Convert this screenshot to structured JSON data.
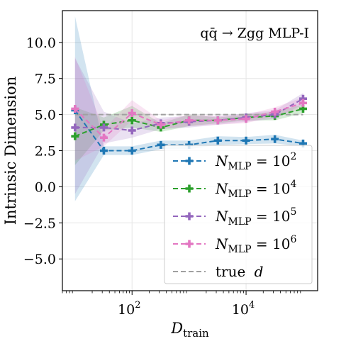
{
  "chart_data": {
    "type": "line",
    "annotation": "qq̄ → Zgg MLP-I",
    "xlabel": "D",
    "xlabel_sub": "train",
    "ylabel": "Intrinsic Dimension",
    "x_scale": "log",
    "xlim": [
      6,
      180000
    ],
    "ylim": [
      -7.2,
      12.2
    ],
    "xticks": [
      {
        "value": 100,
        "base": "10",
        "exp": "2"
      },
      {
        "value": 10000,
        "base": "10",
        "exp": "4"
      }
    ],
    "yticks": [
      {
        "value": 10,
        "label": "10.0"
      },
      {
        "value": 7.5,
        "label": "7.5"
      },
      {
        "value": 5,
        "label": "5.0"
      },
      {
        "value": 2.5,
        "label": "2.5"
      },
      {
        "value": 0,
        "label": "0.0"
      },
      {
        "value": -2.5,
        "label": "−2.5"
      },
      {
        "value": -5,
        "label": "−5.0"
      }
    ],
    "grid": true,
    "legend_position": "lower-right",
    "x": [
      10,
      32,
      100,
      320,
      1000,
      3200,
      10000,
      32000,
      100000
    ],
    "series": [
      {
        "base": "N",
        "sub": "MLP",
        "eq": " = 10",
        "sup": "2",
        "color": "#1f77b4",
        "y": [
          5.3,
          2.5,
          2.5,
          2.9,
          2.9,
          3.2,
          3.2,
          3.3,
          3.0
        ],
        "lower": [
          -1.0,
          2.2,
          2.2,
          2.6,
          2.6,
          2.9,
          2.95,
          3.0,
          2.8
        ],
        "upper": [
          11.8,
          2.8,
          2.8,
          3.2,
          3.2,
          3.5,
          3.45,
          3.6,
          3.2
        ]
      },
      {
        "base": "N",
        "sub": "MLP",
        "eq": " = 10",
        "sup": "4",
        "color": "#2ca02c",
        "y": [
          3.5,
          4.3,
          4.6,
          4.1,
          4.6,
          4.6,
          4.8,
          4.9,
          5.4
        ],
        "lower": [
          1.5,
          3.9,
          4.1,
          3.8,
          4.2,
          4.4,
          4.6,
          4.6,
          5.1
        ],
        "upper": [
          5.5,
          4.8,
          5.6,
          4.4,
          5.0,
          4.8,
          5.0,
          5.2,
          5.7
        ]
      },
      {
        "base": "N",
        "sub": "MLP",
        "eq": " = 10",
        "sup": "5",
        "color": "#9467bd",
        "y": [
          4.1,
          4.1,
          3.9,
          4.4,
          4.5,
          4.6,
          4.8,
          5.0,
          6.1
        ],
        "lower": [
          -0.5,
          3.0,
          3.4,
          4.0,
          4.1,
          4.3,
          4.5,
          4.7,
          5.7
        ],
        "upper": [
          8.9,
          5.2,
          4.4,
          4.8,
          4.9,
          4.9,
          5.1,
          5.3,
          6.5
        ]
      },
      {
        "base": "N",
        "sub": "MLP",
        "eq": " = 10",
        "sup": "6",
        "color": "#e377c2",
        "y": [
          5.4,
          3.4,
          5.1,
          4.3,
          4.6,
          4.6,
          4.7,
          5.2,
          5.8
        ],
        "lower": [
          1.8,
          2.8,
          4.6,
          4.0,
          4.2,
          4.3,
          4.4,
          4.9,
          5.4
        ],
        "upper": [
          9.0,
          4.0,
          6.0,
          4.6,
          5.0,
          4.9,
          5.0,
          5.5,
          6.2
        ]
      }
    ],
    "reference_line": {
      "label_text": "true ",
      "label_var": "d",
      "y": 5,
      "color": "#a0a0a0"
    }
  }
}
